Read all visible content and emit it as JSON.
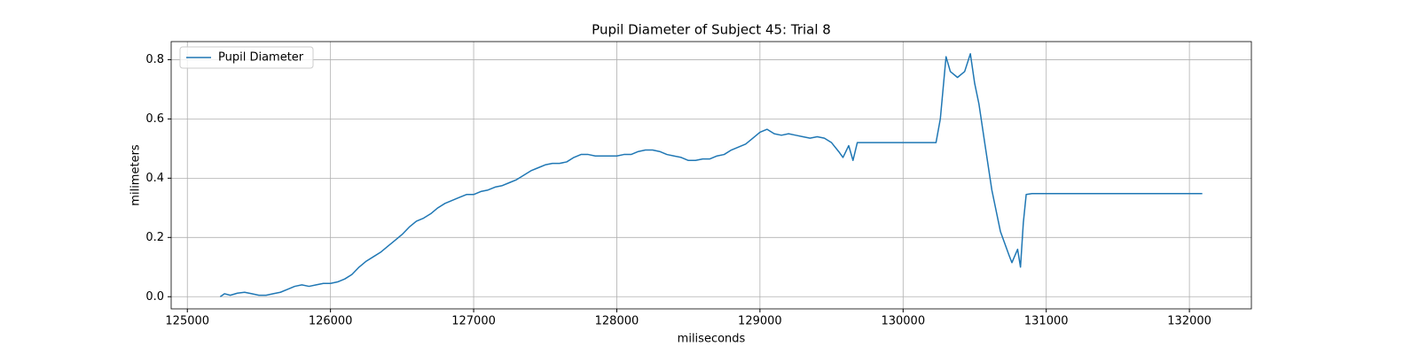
{
  "chart_data": {
    "type": "line",
    "title": "Pupil Diameter of Subject 45: Trial 8",
    "x_label": "miliseconds",
    "y_label": "milimeters",
    "x": [
      125230,
      125260,
      125300,
      125350,
      125400,
      125450,
      125500,
      125550,
      125600,
      125650,
      125700,
      125750,
      125800,
      125850,
      125900,
      125950,
      126000,
      126050,
      126100,
      126150,
      126200,
      126250,
      126300,
      126350,
      126400,
      126450,
      126500,
      126550,
      126600,
      126650,
      126700,
      126750,
      126800,
      126850,
      126900,
      126950,
      127000,
      127050,
      127100,
      127150,
      127200,
      127250,
      127300,
      127350,
      127400,
      127450,
      127500,
      127550,
      127600,
      127650,
      127700,
      127750,
      127800,
      127850,
      127900,
      127950,
      128000,
      128050,
      128100,
      128150,
      128200,
      128250,
      128300,
      128350,
      128400,
      128450,
      128500,
      128550,
      128600,
      128650,
      128700,
      128750,
      128800,
      128850,
      128900,
      128950,
      129000,
      129050,
      129100,
      129150,
      129200,
      129250,
      129300,
      129350,
      129400,
      129450,
      129500,
      129550,
      129580,
      129620,
      129650,
      129680,
      129750,
      130230,
      130260,
      130300,
      130330,
      130380,
      130430,
      130470,
      130500,
      130530,
      130570,
      130620,
      130680,
      130740,
      130760,
      130800,
      130820,
      130840,
      130860,
      130900,
      132090
    ],
    "series": [
      {
        "name": "Pupil Diameter",
        "color": "#1f77b4",
        "values": [
          0.0,
          0.01,
          0.005,
          0.012,
          0.015,
          0.01,
          0.005,
          0.005,
          0.01,
          0.015,
          0.025,
          0.035,
          0.04,
          0.035,
          0.04,
          0.045,
          0.045,
          0.05,
          0.06,
          0.075,
          0.1,
          0.12,
          0.135,
          0.15,
          0.17,
          0.19,
          0.21,
          0.235,
          0.255,
          0.265,
          0.28,
          0.3,
          0.315,
          0.325,
          0.335,
          0.345,
          0.345,
          0.355,
          0.36,
          0.37,
          0.375,
          0.385,
          0.395,
          0.41,
          0.425,
          0.435,
          0.445,
          0.45,
          0.45,
          0.455,
          0.47,
          0.48,
          0.48,
          0.475,
          0.475,
          0.475,
          0.475,
          0.48,
          0.48,
          0.49,
          0.495,
          0.495,
          0.49,
          0.48,
          0.475,
          0.47,
          0.46,
          0.46,
          0.465,
          0.465,
          0.475,
          0.48,
          0.495,
          0.505,
          0.515,
          0.535,
          0.555,
          0.565,
          0.55,
          0.545,
          0.55,
          0.545,
          0.54,
          0.535,
          0.54,
          0.535,
          0.52,
          0.49,
          0.47,
          0.51,
          0.46,
          0.52,
          0.52,
          0.52,
          0.6,
          0.81,
          0.76,
          0.74,
          0.76,
          0.82,
          0.72,
          0.65,
          0.52,
          0.36,
          0.22,
          0.14,
          0.115,
          0.16,
          0.1,
          0.25,
          0.345,
          0.348,
          0.348
        ]
      }
    ],
    "xlim": [
      124887,
      132433
    ],
    "ylim": [
      -0.041,
      0.861
    ],
    "xticks": [
      125000,
      126000,
      127000,
      128000,
      129000,
      130000,
      131000,
      132000
    ],
    "yticks": [
      {
        "value": 0,
        "label": "0.0"
      },
      0.2,
      0.4,
      0.6,
      0.8
    ],
    "grid": true,
    "legend": "upper left"
  }
}
